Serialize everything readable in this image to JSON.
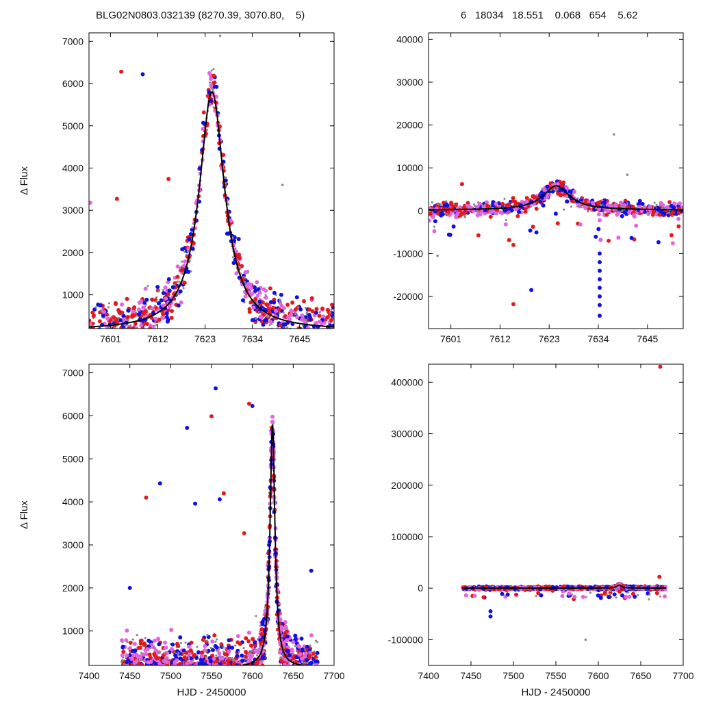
{
  "header": {
    "left": "BLG02N0803.032139 (8270.39, 3070.80,    5)",
    "right": "6   18034   18.551    0.068   654    5.62"
  },
  "series_colors": {
    "gray": "#8a8a8a",
    "red": "#e31a1c",
    "magenta": "#e066e0",
    "blue": "#1010e0",
    "model": "#000000"
  },
  "chart_data": [
    {
      "id": "top-left",
      "type": "scatter",
      "title": "",
      "xlabel": "",
      "ylabel": "Δ Flux",
      "xlim": [
        7596,
        7653
      ],
      "ylim": [
        200,
        7200
      ],
      "xticks": [
        7601,
        7612,
        7623,
        7634,
        7645
      ],
      "yticks": [
        1000,
        2000,
        3000,
        4000,
        5000,
        6000,
        7000
      ],
      "model": {
        "t0": 7624.6,
        "peak": 5650,
        "base": 150,
        "tau": 3.6
      },
      "outliers": [
        [
          7603.5,
          6280,
          "red"
        ],
        [
          7608.5,
          6220,
          "blue"
        ],
        [
          7602.5,
          3270,
          "red"
        ],
        [
          7596.3,
          3180,
          "magenta"
        ],
        [
          7614.5,
          3740,
          "red"
        ],
        [
          7626.5,
          7130,
          "gray"
        ],
        [
          7641,
          3600,
          "gray"
        ]
      ]
    },
    {
      "id": "top-right",
      "type": "scatter",
      "title": "",
      "xlabel": "",
      "ylabel": "",
      "xlim": [
        7596,
        7653
      ],
      "ylim": [
        -27500,
        41500
      ],
      "xticks": [
        7601,
        7612,
        7623,
        7634,
        7645
      ],
      "yticks": [
        -20000,
        -10000,
        0,
        10000,
        20000,
        30000,
        40000
      ],
      "model": {
        "t0": 7624.6,
        "peak": 5650,
        "base": 150,
        "tau": 3.6
      },
      "outliers": [
        [
          7634.3,
          -10000,
          "blue"
        ],
        [
          7634.3,
          -12000,
          "blue"
        ],
        [
          7634.3,
          -14000,
          "blue"
        ],
        [
          7634.3,
          -16000,
          "blue"
        ],
        [
          7634.3,
          -18000,
          "blue"
        ],
        [
          7634.3,
          -20000,
          "blue"
        ],
        [
          7634.3,
          -22000,
          "blue"
        ],
        [
          7634.3,
          -24500,
          "blue"
        ],
        [
          7615,
          -21800,
          "red"
        ],
        [
          7619,
          -18500,
          "blue"
        ],
        [
          7615,
          -8000,
          "red"
        ],
        [
          7637.5,
          17800,
          "gray"
        ],
        [
          7640.5,
          8400,
          "gray"
        ],
        [
          7603.5,
          6200,
          "red"
        ],
        [
          7598,
          -10500,
          "gray"
        ]
      ]
    },
    {
      "id": "bottom-left",
      "type": "scatter",
      "title": "",
      "xlabel": "HJD - 2450000",
      "ylabel": "Δ Flux",
      "xlim": [
        7400,
        7700
      ],
      "ylim": [
        200,
        7200
      ],
      "xticks": [
        7400,
        7450,
        7500,
        7550,
        7600,
        7650,
        7700
      ],
      "yticks": [
        1000,
        2000,
        3000,
        4000,
        5000,
        6000,
        7000
      ],
      "model": {
        "t0": 7624.6,
        "peak": 5650,
        "base": 150,
        "tau": 3.6
      },
      "outliers": [
        [
          7470,
          4100,
          "red"
        ],
        [
          7487,
          4430,
          "blue"
        ],
        [
          7520,
          5720,
          "blue"
        ],
        [
          7555,
          6640,
          "blue"
        ],
        [
          7550,
          5990,
          "red"
        ],
        [
          7596,
          6280,
          "red"
        ],
        [
          7600,
          6230,
          "blue"
        ],
        [
          7565,
          4200,
          "red"
        ],
        [
          7560,
          4060,
          "blue"
        ],
        [
          7530,
          3960,
          "blue"
        ],
        [
          7590,
          3270,
          "red"
        ],
        [
          7450,
          2000,
          "blue"
        ],
        [
          7672,
          2400,
          "blue"
        ]
      ]
    },
    {
      "id": "bottom-right",
      "type": "scatter",
      "title": "",
      "xlabel": "HJD - 2450000",
      "ylabel": "",
      "xlim": [
        7400,
        7700
      ],
      "ylim": [
        -150000,
        435000
      ],
      "xticks": [
        7400,
        7450,
        7500,
        7550,
        7600,
        7650,
        7700
      ],
      "yticks": [
        -100000,
        0,
        100000,
        200000,
        300000,
        400000
      ],
      "model": {
        "t0": 7624.6,
        "peak": 5650,
        "base": 150,
        "tau": 3.6
      },
      "outliers": [
        [
          7673,
          430000,
          "red"
        ],
        [
          7473,
          -45000,
          "blue"
        ],
        [
          7473,
          -55000,
          "blue"
        ],
        [
          7585,
          -100000,
          "gray"
        ],
        [
          7672,
          22000,
          "red"
        ]
      ]
    }
  ]
}
